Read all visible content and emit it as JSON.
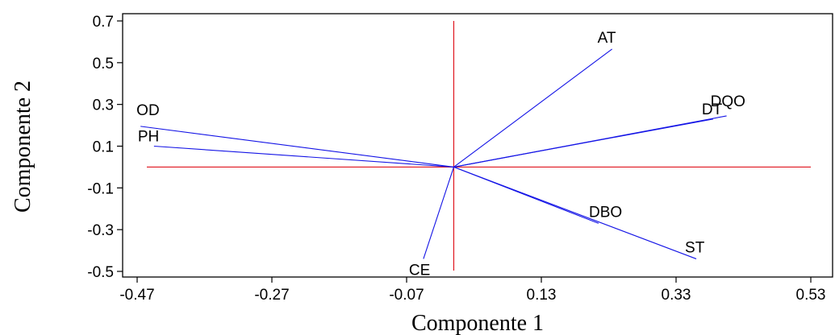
{
  "chart_data": {
    "type": "biplot",
    "title": "",
    "xlabel": "Componente 1",
    "ylabel": "Componente 2",
    "xlim": [
      -0.47,
      0.53
    ],
    "ylim": [
      -0.53,
      0.72
    ],
    "xticks": [
      -0.47,
      -0.27,
      -0.07,
      0.13,
      0.33,
      0.53
    ],
    "xtick_labels": [
      "-0.47",
      "-0.27",
      "-0.07",
      "0.13",
      "0.33",
      "0.53"
    ],
    "yticks": [
      0.7,
      0.5,
      0.3,
      0.1,
      -0.1,
      -0.3,
      -0.5
    ],
    "ytick_labels": [
      "0.7",
      "0.5",
      "0.3",
      "0.1",
      "-0.1",
      "-0.3",
      "-0.5"
    ],
    "reference_lines": {
      "x": 0.0,
      "y": 0.0,
      "color": "#e0141e"
    },
    "vector_color": "#1414e6",
    "vectors": [
      {
        "name": "AT",
        "x": 0.235,
        "y": 0.565
      },
      {
        "name": "DT",
        "x": 0.385,
        "y": 0.23
      },
      {
        "name": "DQO",
        "x": 0.405,
        "y": 0.245
      },
      {
        "name": "OD",
        "x": -0.465,
        "y": 0.195
      },
      {
        "name": "PH",
        "x": -0.445,
        "y": 0.1
      },
      {
        "name": "DBO",
        "x": 0.215,
        "y": -0.27
      },
      {
        "name": "ST",
        "x": 0.36,
        "y": -0.44
      },
      {
        "name": "CE",
        "x": -0.045,
        "y": -0.44
      }
    ]
  }
}
